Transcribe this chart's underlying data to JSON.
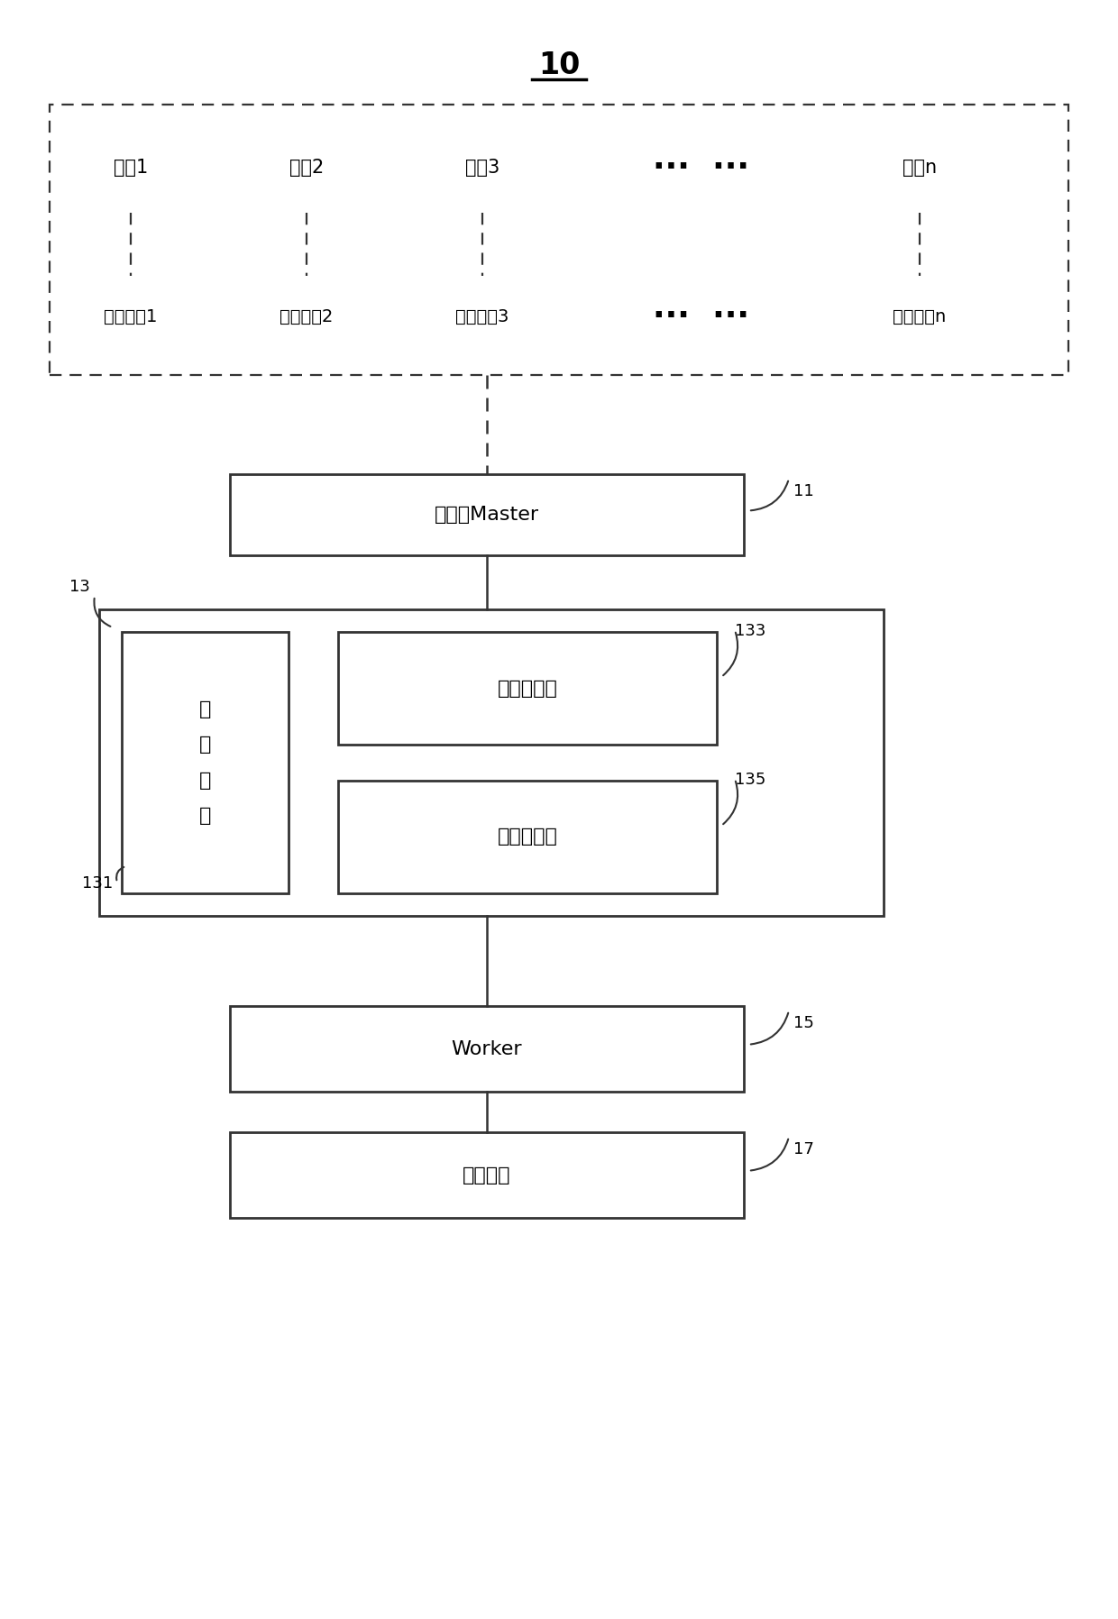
{
  "bg_color": "#ffffff",
  "font_size_title": 22,
  "font_size_box": 15,
  "font_size_label": 13,
  "users": [
    "用户1",
    "用户2",
    "用户3",
    "用户n"
  ],
  "uis": [
    "用户界面1",
    "用户界面2",
    "用户界面3",
    "用户界面n"
  ],
  "master_label": "主控器Master",
  "worker_label": "Worker",
  "predict_label": "预测模型",
  "queue_label": "任\n务\n队\n列",
  "load_counter_label": "加载计数器",
  "cancel_counter_label": "撤销计数器",
  "ref_13": "13",
  "ref_131": "131",
  "ref_133": "133",
  "ref_135": "135",
  "ref_11": "11",
  "ref_15": "15",
  "ref_17": "17",
  "ref_10": "10"
}
